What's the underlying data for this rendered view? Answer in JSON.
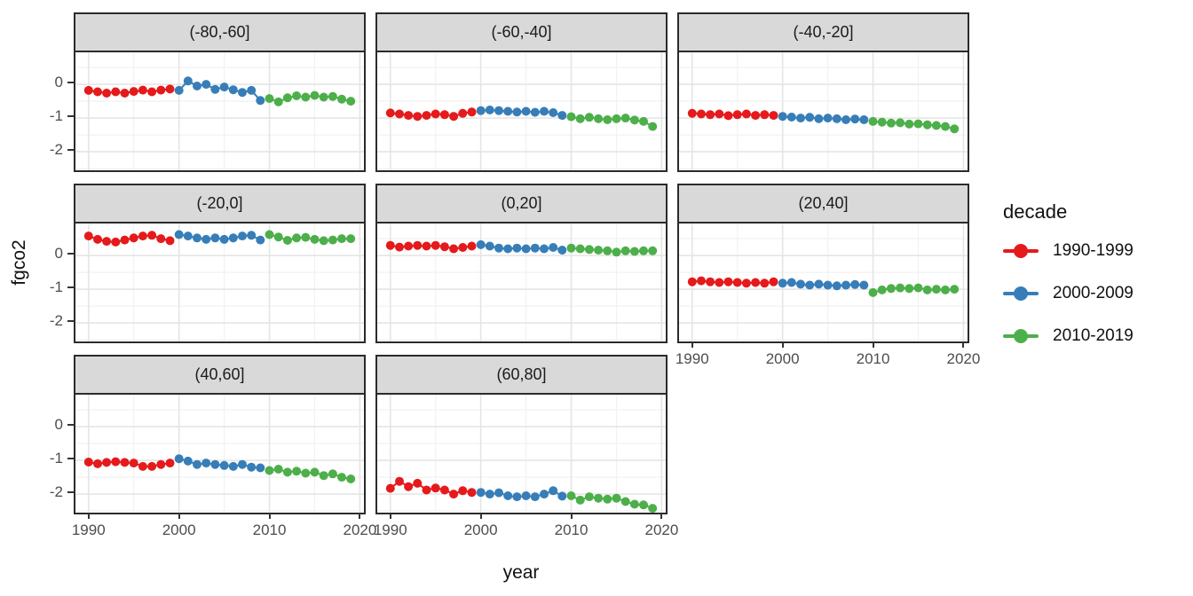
{
  "figure": {
    "background": "#ffffff"
  },
  "axes": {
    "x_title": "year",
    "y_title": "fgco2"
  },
  "legend": {
    "title": "decade",
    "entries": [
      {
        "label": "1990-1999",
        "color": "#E41A1C"
      },
      {
        "label": "2000-2009",
        "color": "#377EB8"
      },
      {
        "label": "2010-2019",
        "color": "#4DAF4A"
      }
    ]
  },
  "chart_data": {
    "type": "line",
    "title": "",
    "xlabel": "year",
    "ylabel": "fgco2",
    "facet_variable": "latitude band",
    "color_variable": "decade",
    "legend_position": "right",
    "grid": true,
    "xlim": [
      1988.55,
      2020.45
    ],
    "ylim": [
      -2.55,
      0.95
    ],
    "x_ticks": [
      1990,
      2000,
      2010,
      2020
    ],
    "x_minor_ticks": [
      1995,
      2005,
      2015
    ],
    "y_ticks": [
      0,
      -1,
      -2
    ],
    "y_minor_ticks": [
      0.5,
      -0.5,
      -1.5,
      -2.5
    ],
    "years": [
      1990,
      1991,
      1992,
      1993,
      1994,
      1995,
      1996,
      1997,
      1998,
      1999,
      2000,
      2001,
      2002,
      2003,
      2004,
      2005,
      2006,
      2007,
      2008,
      2009,
      2010,
      2011,
      2012,
      2013,
      2014,
      2015,
      2016,
      2017,
      2018,
      2019
    ],
    "series": [
      {
        "name": "1990-1999",
        "color": "#E41A1C",
        "year_range": [
          1990,
          1999
        ]
      },
      {
        "name": "2000-2009",
        "color": "#377EB8",
        "year_range": [
          2000,
          2009
        ]
      },
      {
        "name": "2010-2019",
        "color": "#4DAF4A",
        "year_range": [
          2010,
          2019
        ]
      }
    ],
    "facets": [
      {
        "label": "(-80,-60]",
        "values": [
          -0.18,
          -0.22,
          -0.26,
          -0.22,
          -0.26,
          -0.21,
          -0.17,
          -0.22,
          -0.17,
          -0.14,
          -0.18,
          0.1,
          -0.05,
          0.0,
          -0.15,
          -0.08,
          -0.16,
          -0.24,
          -0.18,
          -0.48,
          -0.42,
          -0.52,
          -0.4,
          -0.34,
          -0.38,
          -0.33,
          -0.38,
          -0.36,
          -0.44,
          -0.5
        ]
      },
      {
        "label": "(-60,-40]",
        "values": [
          -0.85,
          -0.88,
          -0.92,
          -0.95,
          -0.92,
          -0.88,
          -0.9,
          -0.95,
          -0.86,
          -0.82,
          -0.78,
          -0.76,
          -0.78,
          -0.8,
          -0.82,
          -0.8,
          -0.83,
          -0.8,
          -0.84,
          -0.92,
          -0.96,
          -1.02,
          -0.98,
          -1.02,
          -1.05,
          -1.02,
          -1.0,
          -1.06,
          -1.1,
          -1.25
        ]
      },
      {
        "label": "(-40,-20]",
        "values": [
          -0.86,
          -0.88,
          -0.9,
          -0.88,
          -0.93,
          -0.9,
          -0.88,
          -0.92,
          -0.9,
          -0.92,
          -0.95,
          -0.97,
          -1.0,
          -0.98,
          -1.02,
          -1.0,
          -1.02,
          -1.05,
          -1.03,
          -1.05,
          -1.1,
          -1.12,
          -1.15,
          -1.14,
          -1.18,
          -1.17,
          -1.2,
          -1.22,
          -1.25,
          -1.32
        ]
      },
      {
        "label": "(-20,0]",
        "values": [
          0.58,
          0.48,
          0.42,
          0.4,
          0.46,
          0.52,
          0.58,
          0.6,
          0.5,
          0.44,
          0.62,
          0.58,
          0.52,
          0.48,
          0.52,
          0.48,
          0.52,
          0.58,
          0.6,
          0.46,
          0.62,
          0.55,
          0.45,
          0.52,
          0.54,
          0.48,
          0.44,
          0.46,
          0.5,
          0.5
        ]
      },
      {
        "label": "(0,20]",
        "values": [
          0.3,
          0.25,
          0.28,
          0.3,
          0.28,
          0.3,
          0.26,
          0.2,
          0.24,
          0.28,
          0.32,
          0.28,
          0.22,
          0.2,
          0.22,
          0.2,
          0.22,
          0.2,
          0.24,
          0.16,
          0.22,
          0.2,
          0.18,
          0.16,
          0.14,
          0.1,
          0.14,
          0.12,
          0.14,
          0.14
        ]
      },
      {
        "label": "(20,40]",
        "values": [
          -0.78,
          -0.75,
          -0.78,
          -0.8,
          -0.78,
          -0.8,
          -0.82,
          -0.8,
          -0.82,
          -0.78,
          -0.82,
          -0.8,
          -0.85,
          -0.88,
          -0.85,
          -0.88,
          -0.9,
          -0.88,
          -0.86,
          -0.88,
          -1.1,
          -1.02,
          -0.98,
          -0.96,
          -0.98,
          -0.96,
          -1.02,
          -1.0,
          -1.02,
          -1.0
        ]
      },
      {
        "label": "(40,60]",
        "values": [
          -1.05,
          -1.1,
          -1.06,
          -1.04,
          -1.06,
          -1.08,
          -1.18,
          -1.18,
          -1.12,
          -1.08,
          -0.95,
          -1.02,
          -1.12,
          -1.08,
          -1.12,
          -1.15,
          -1.18,
          -1.12,
          -1.2,
          -1.22,
          -1.3,
          -1.26,
          -1.35,
          -1.32,
          -1.38,
          -1.35,
          -1.45,
          -1.4,
          -1.5,
          -1.55
        ]
      },
      {
        "label": "(60,80]",
        "values": [
          -1.83,
          -1.62,
          -1.78,
          -1.68,
          -1.88,
          -1.82,
          -1.88,
          -2.0,
          -1.9,
          -1.95,
          -1.95,
          -2.0,
          -1.96,
          -2.05,
          -2.08,
          -2.05,
          -2.08,
          -2.0,
          -1.9,
          -2.06,
          -2.05,
          -2.18,
          -2.08,
          -2.12,
          -2.15,
          -2.12,
          -2.22,
          -2.3,
          -2.32,
          -2.42
        ]
      }
    ]
  }
}
